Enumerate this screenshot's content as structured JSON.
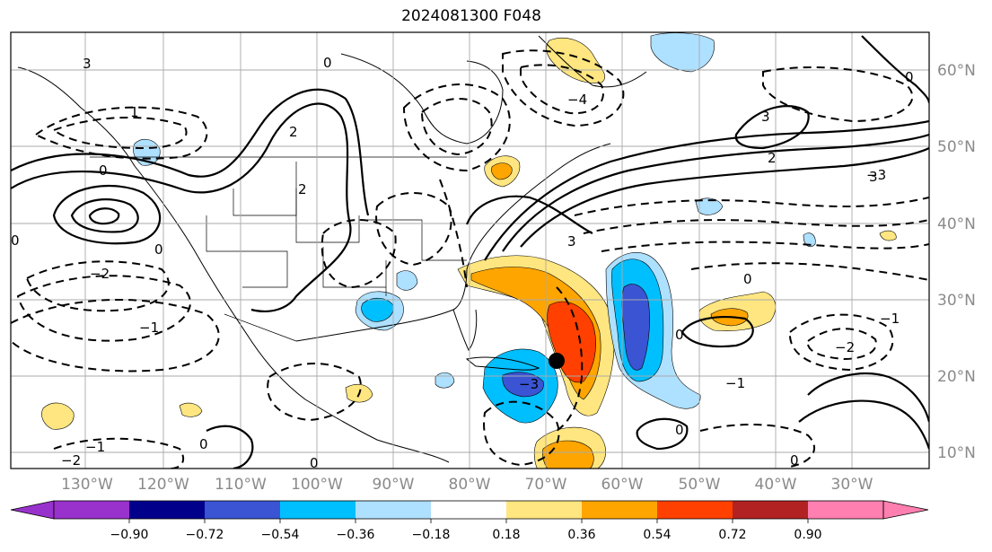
{
  "title": "2024081300 F048",
  "lat_labels": [
    "60°N",
    "50°N",
    "40°N",
    "30°N",
    "20°N",
    "10°N"
  ],
  "lon_labels": [
    "130°W",
    "120°W",
    "110°W",
    "100°W",
    "90°W",
    "80°W",
    "70°W",
    "60°W",
    "50°W",
    "40°W",
    "30°W"
  ],
  "colorbar": {
    "colors": [
      "#9932cc",
      "#00008b",
      "#3a54d3",
      "#00bfff",
      "#aee0ff",
      "#ffffff",
      "#ffe680",
      "#ffa500",
      "#ff4000",
      "#b22222",
      "#ff7fb0"
    ],
    "ticks": [
      "−0.90",
      "−0.72",
      "−0.54",
      "−0.36",
      "−0.18",
      "0.18",
      "0.36",
      "0.54",
      "0.72",
      "0.90"
    ]
  },
  "contour_labels": [
    "3",
    "2",
    "1",
    "0",
    "−1",
    "−2",
    "−3",
    "−4"
  ],
  "marker": "black-dot"
}
